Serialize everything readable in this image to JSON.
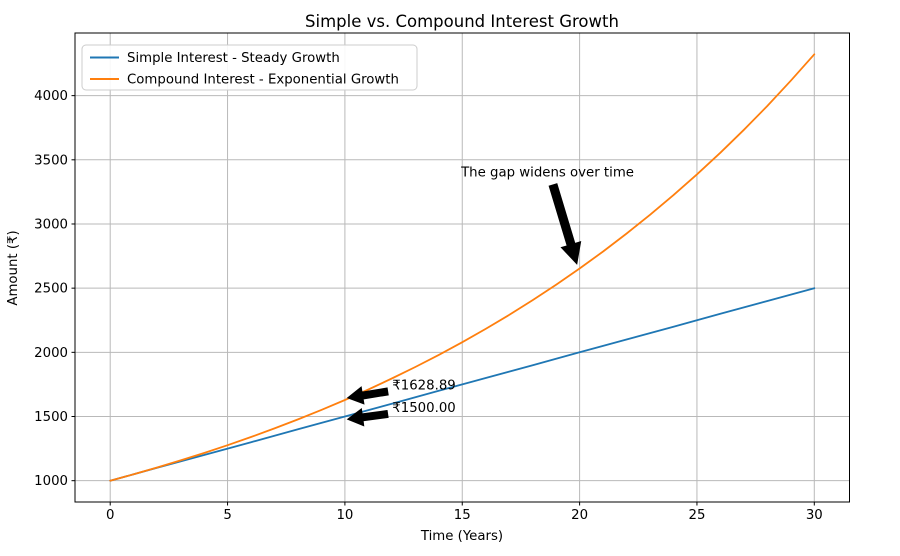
{
  "chart_data": {
    "type": "line",
    "title": "Simple vs. Compound Interest Growth",
    "xlabel": "Time (Years)",
    "ylabel": "Amount (₹)",
    "xlim": [
      -1.5,
      31.5
    ],
    "ylim": [
      833.9,
      4488.0
    ],
    "xticks": [
      0,
      5,
      10,
      15,
      20,
      25,
      30
    ],
    "yticks": [
      1000,
      1500,
      2000,
      2500,
      3000,
      3500,
      4000
    ],
    "grid": true,
    "grid_color": "#b9b9b9",
    "spine_color": "#000000",
    "legend_position": "upper-left",
    "x": [
      0,
      1,
      2,
      3,
      4,
      5,
      6,
      7,
      8,
      9,
      10,
      11,
      12,
      13,
      14,
      15,
      16,
      17,
      18,
      19,
      20,
      21,
      22,
      23,
      24,
      25,
      26,
      27,
      28,
      29,
      30
    ],
    "series": [
      {
        "name": "Simple Interest - Steady Growth",
        "color": "#1f77b4",
        "values": [
          1000,
          1050,
          1100,
          1150,
          1200,
          1250,
          1300,
          1350,
          1400,
          1450,
          1500,
          1550,
          1600,
          1650,
          1700,
          1750,
          1800,
          1850,
          1900,
          1950,
          2000,
          2050,
          2100,
          2150,
          2200,
          2250,
          2300,
          2350,
          2400,
          2450,
          2500
        ]
      },
      {
        "name": "Compound Interest - Exponential Growth",
        "color": "#ff7f0e",
        "values": [
          1000,
          1050,
          1102.5,
          1157.63,
          1215.51,
          1276.28,
          1340.1,
          1407.1,
          1477.46,
          1551.33,
          1628.89,
          1710.34,
          1795.86,
          1885.65,
          1979.93,
          2078.93,
          2182.87,
          2292.02,
          2406.62,
          2526.95,
          2653.3,
          2785.96,
          2925.26,
          3071.52,
          3225.1,
          3386.35,
          3555.67,
          3733.46,
          3920.13,
          4116.14,
          4321.94
        ]
      }
    ],
    "annotations": [
      {
        "text": "The gap widens over time",
        "text_xy": [
          14.95,
          3370
        ],
        "arrow_from": [
          18.87,
          3304
        ],
        "arrow_to": [
          19.88,
          2690
        ],
        "arrow_color": "#000000",
        "tail_width": 8,
        "head_width": 20,
        "head_length": 20
      },
      {
        "text": "₹1628.89",
        "text_xy": [
          12.02,
          1710
        ],
        "arrow_from": [
          11.82,
          1695
        ],
        "arrow_to": [
          10.12,
          1645
        ],
        "arrow_color": "#000000",
        "tail_width": 7,
        "head_width": 17,
        "head_length": 15
      },
      {
        "text": "₹1500.00",
        "text_xy": [
          12.02,
          1535
        ],
        "arrow_from": [
          11.82,
          1520
        ],
        "arrow_to": [
          10.12,
          1478
        ],
        "arrow_color": "#000000",
        "tail_width": 7,
        "head_width": 17,
        "head_length": 15
      }
    ]
  }
}
